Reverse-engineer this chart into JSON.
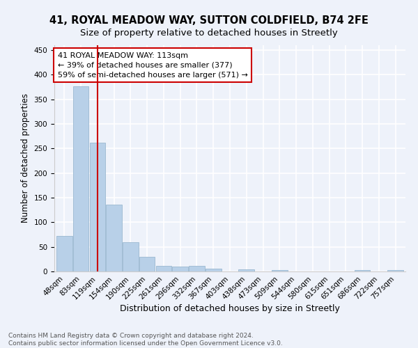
{
  "title": "41, ROYAL MEADOW WAY, SUTTON COLDFIELD, B74 2FE",
  "subtitle": "Size of property relative to detached houses in Streetly",
  "xlabel": "Distribution of detached houses by size in Streetly",
  "ylabel": "Number of detached properties",
  "categories": [
    "48sqm",
    "83sqm",
    "119sqm",
    "154sqm",
    "190sqm",
    "225sqm",
    "261sqm",
    "296sqm",
    "332sqm",
    "367sqm",
    "403sqm",
    "438sqm",
    "473sqm",
    "509sqm",
    "544sqm",
    "580sqm",
    "615sqm",
    "651sqm",
    "686sqm",
    "722sqm",
    "757sqm"
  ],
  "values": [
    72,
    377,
    262,
    136,
    60,
    30,
    11,
    10,
    11,
    5,
    0,
    4,
    0,
    3,
    0,
    0,
    0,
    0,
    3,
    0,
    3
  ],
  "bar_color": "#b8d0e8",
  "bar_edge_color": "#9ab8d0",
  "vline_x_index": 2,
  "vline_color": "#cc0000",
  "annotation_text": "41 ROYAL MEADOW WAY: 113sqm\n← 39% of detached houses are smaller (377)\n59% of semi-detached houses are larger (571) →",
  "annotation_box_color": "#ffffff",
  "annotation_box_edge_color": "#cc0000",
  "ylim": [
    0,
    460
  ],
  "yticks": [
    0,
    50,
    100,
    150,
    200,
    250,
    300,
    350,
    400,
    450
  ],
  "footnote": "Contains HM Land Registry data © Crown copyright and database right 2024.\nContains public sector information licensed under the Open Government Licence v3.0.",
  "background_color": "#eef2fa",
  "grid_color": "#ffffff",
  "title_fontsize": 10.5,
  "subtitle_fontsize": 9.5,
  "xlabel_fontsize": 9,
  "ylabel_fontsize": 8.5,
  "tick_fontsize": 7.5,
  "annotation_fontsize": 8,
  "footnote_fontsize": 6.5
}
